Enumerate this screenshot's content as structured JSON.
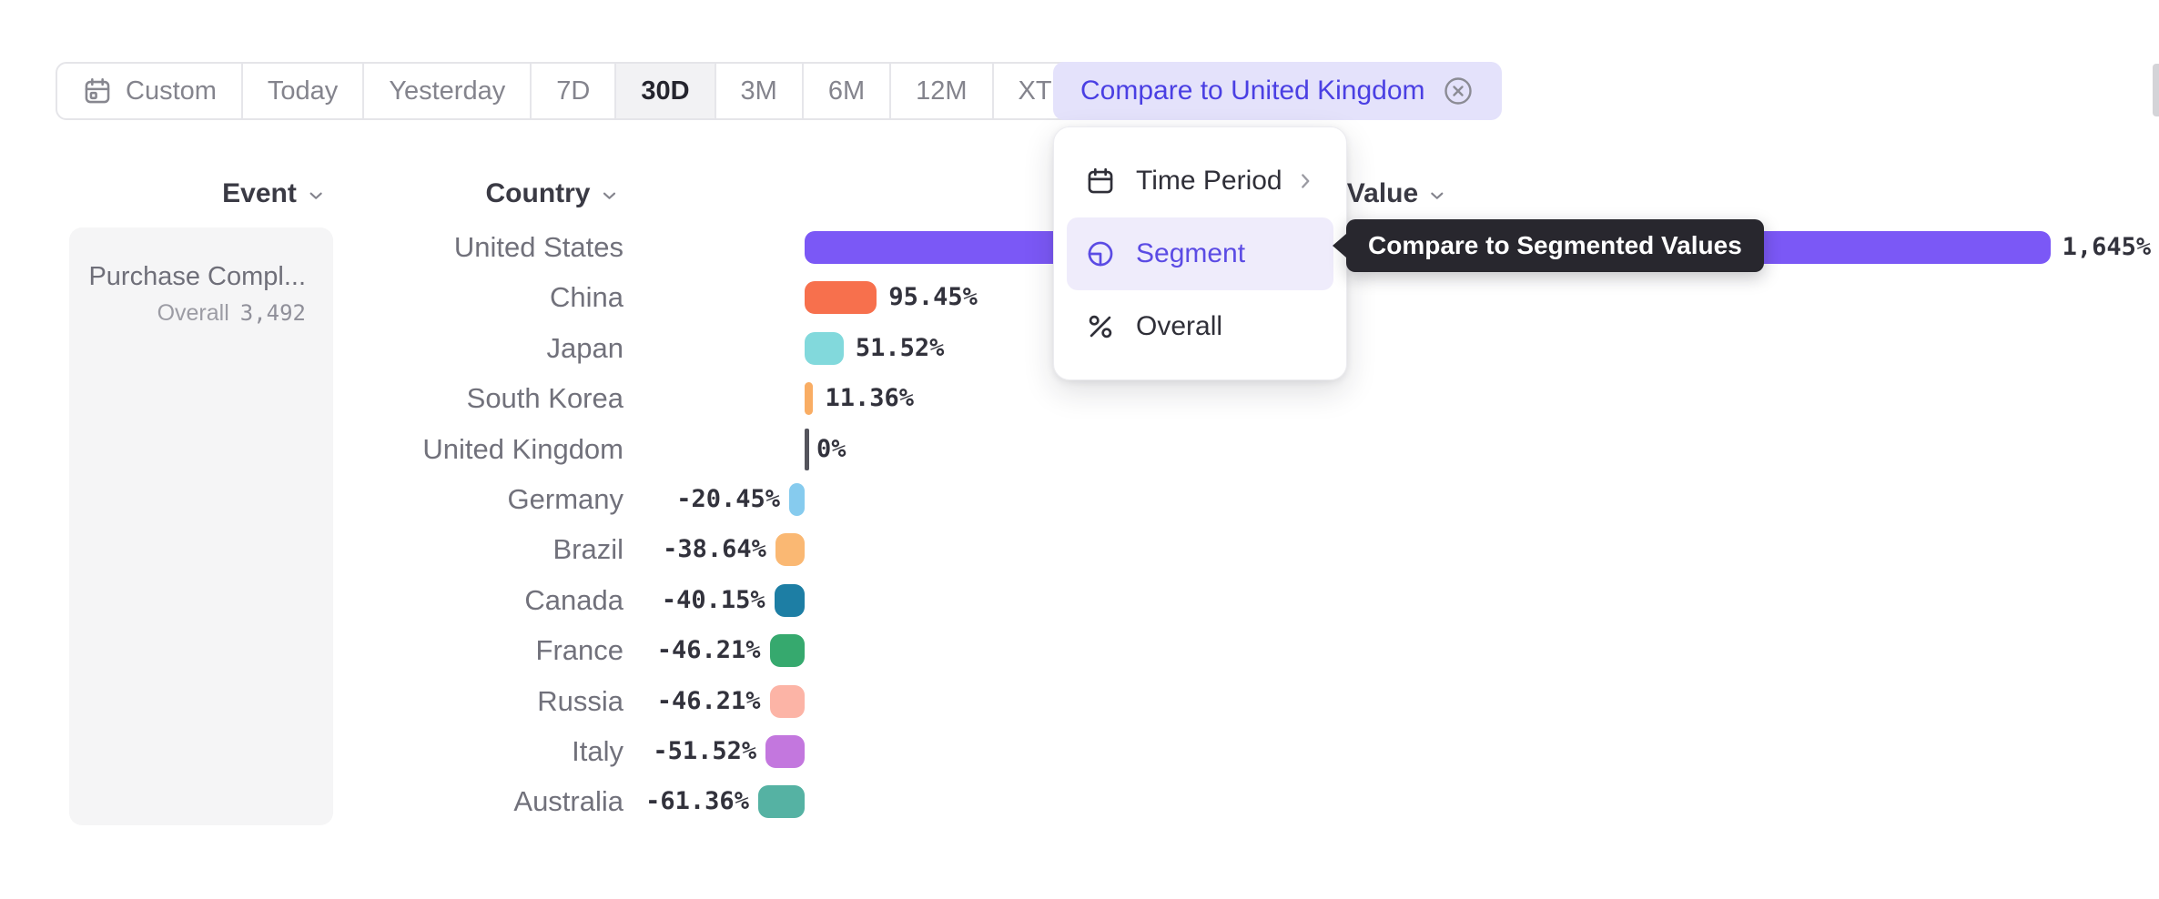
{
  "toolbar": {
    "ranges": [
      {
        "label": "Custom",
        "icon": "calendar"
      },
      {
        "label": "Today"
      },
      {
        "label": "Yesterday"
      },
      {
        "label": "7D"
      },
      {
        "label": "30D"
      },
      {
        "label": "3M"
      },
      {
        "label": "6M"
      },
      {
        "label": "12M"
      },
      {
        "label": "XTD",
        "chevron": true
      }
    ],
    "active_range": "30D",
    "compare_button_label": "Compare to United Kingdom"
  },
  "columns": {
    "event": "Event",
    "country": "Country",
    "value": "Value"
  },
  "event_panel": {
    "event_name": "Purchase Compl...",
    "overall_label": "Overall",
    "overall_value": "3,492"
  },
  "menu": {
    "items": [
      {
        "label": "Time Period",
        "icon": "calendar",
        "has_submenu": true,
        "selected": false
      },
      {
        "label": "Segment",
        "icon": "segment",
        "has_submenu": false,
        "selected": true
      },
      {
        "label": "Overall",
        "icon": "percent",
        "has_submenu": false,
        "selected": false
      }
    ]
  },
  "tooltip": {
    "text": "Compare to Segmented Values"
  },
  "chart_data": {
    "type": "bar",
    "orientation": "horizontal",
    "unit": "%",
    "baseline_segment": "United Kingdom",
    "categories": [
      "United States",
      "China",
      "Japan",
      "South Korea",
      "United Kingdom",
      "Germany",
      "Brazil",
      "Canada",
      "France",
      "Russia",
      "Italy",
      "Australia"
    ],
    "values": [
      1645,
      95.45,
      51.52,
      11.36,
      0,
      -20.45,
      -38.64,
      -40.15,
      -46.21,
      -46.21,
      -51.52,
      -61.36
    ],
    "value_labels": [
      "1,645%",
      "95.45%",
      "51.52%",
      "11.36%",
      "0%",
      "-20.45%",
      "-38.64%",
      "-40.15%",
      "-46.21%",
      "-46.21%",
      "-51.52%",
      "-61.36%"
    ],
    "colors": [
      "#7b58f6",
      "#f7704d",
      "#82d9dc",
      "#f9ad64",
      "#54545c",
      "#86cbee",
      "#fab873",
      "#1d7ea4",
      "#36a96e",
      "#fcb4a6",
      "#c377de",
      "#55b2a3"
    ],
    "patterned": [
      false,
      false,
      false,
      false,
      false,
      true,
      true,
      false,
      false,
      false,
      false,
      false
    ],
    "xlim": [
      -100,
      1700
    ],
    "grid": false,
    "legend": false
  },
  "ui_colors": {
    "accent_purple": "#5b4be4",
    "pill_bg": "#e4e2fb",
    "tooltip_bg": "#28272e",
    "panel_bg": "#f5f5f6",
    "active_tab_bg": "#f2f2f4"
  }
}
